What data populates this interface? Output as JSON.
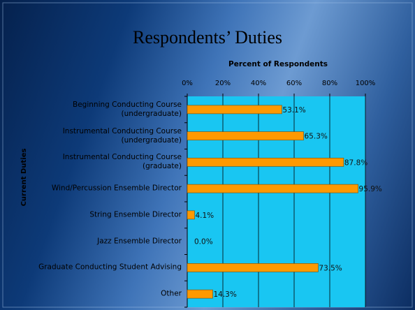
{
  "chart_data": {
    "type": "bar",
    "orientation": "horizontal",
    "title": "Respondents’ Duties",
    "x_axis_label": "Percent of Respondents",
    "y_axis_label": "Current Duties",
    "categories": [
      "Beginning Conducting Course\n(undergraduate)",
      "Instrumental Conducting Course\n(undergraduate)",
      "Instrumental Conducting Course\n(graduate)",
      "Wind/Percussion Ensemble Director",
      "String Ensemble Director",
      "Jazz Ensemble Director",
      "Graduate Conducting Student Advising",
      "Other"
    ],
    "values": [
      53.1,
      65.3,
      87.8,
      95.9,
      4.1,
      0.0,
      73.5,
      14.3
    ],
    "value_labels": [
      "53.1%",
      "65.3%",
      "87.8%",
      "95.9%",
      "4.1%",
      "0.0%",
      "73.5%",
      "14.3%"
    ],
    "color": "#ff9900",
    "xlim": [
      0,
      100
    ],
    "xticks": [
      {
        "value": 0,
        "label": "0%"
      },
      {
        "value": 20,
        "label": "20%"
      },
      {
        "value": 40,
        "label": "40%"
      },
      {
        "value": 60,
        "label": "60%"
      },
      {
        "value": 80,
        "label": "80%"
      },
      {
        "value": 100,
        "label": "100%"
      }
    ],
    "grid": true
  }
}
